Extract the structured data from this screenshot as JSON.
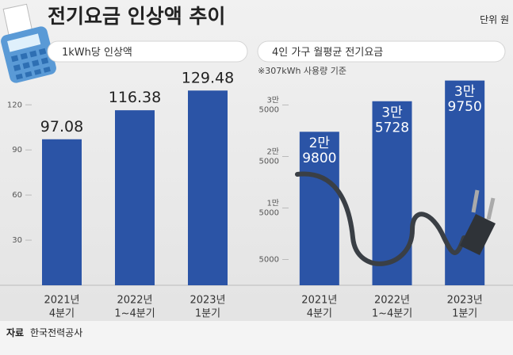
{
  "title": "전기요금 인상액 추이",
  "unit": "단위 원",
  "source_label": "자료",
  "source": "한국전력공사",
  "chart_data": [
    {
      "type": "bar",
      "title": "1kWh당 인상액",
      "categories": [
        "2021년\n4분기",
        "2022년\n1~4분기",
        "2023년\n1분기"
      ],
      "values": [
        97.08,
        116.38,
        129.48
      ],
      "color": "#2b54a6",
      "ylim": [
        0,
        137
      ],
      "yticks": [
        30,
        60,
        90,
        120
      ],
      "grid": false
    },
    {
      "type": "bar",
      "title": "4인 가구 월평균 전기요금",
      "subtitle": "※307kWh 사용량 기준",
      "categories": [
        "2021년\n4분기",
        "2022년\n1~4분기",
        "2023년\n1분기"
      ],
      "values": [
        29800,
        35728,
        39750
      ],
      "value_labels": [
        "2만\n9800",
        "3만\n5728",
        "3만\n9750"
      ],
      "color": "#2b54a6",
      "ylim": [
        0,
        40000
      ],
      "yticks": [
        5000,
        {
          "value": 15000,
          "label": "1만\n5000"
        },
        {
          "value": 25000,
          "label": "2만\n5000"
        },
        {
          "value": 35000,
          "label": "3만\n5000"
        }
      ],
      "grid": false
    }
  ]
}
